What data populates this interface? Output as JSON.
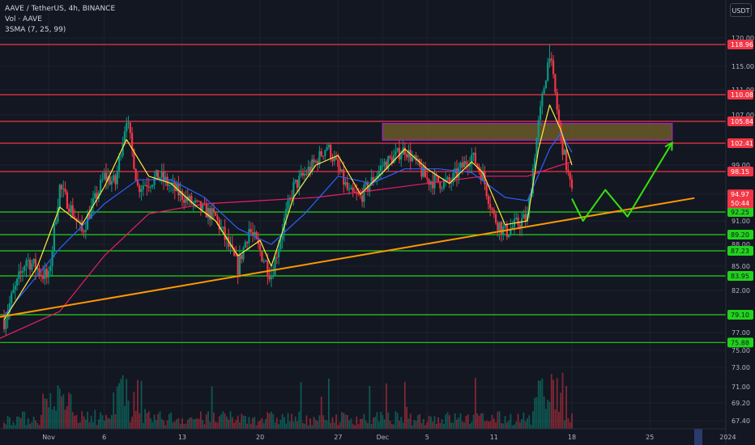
{
  "header": {
    "symbol_line": "AAVE / TetherUS, 4h, BINANCE",
    "volume_line": "Vol · AAVE",
    "sma_line": "3SMA (7, 25, 99)",
    "currency": "USDT"
  },
  "colors": {
    "background": "#131722",
    "resistance": "#f23645",
    "support": "#22d31c",
    "trendline": "#ff9800",
    "projection": "#35e10f",
    "zone_fill": "#6b5b27",
    "zone_border": "#9c27b0",
    "sma7": "#ffeb3b",
    "sma25": "#2962ff",
    "sma99": "#e91e63",
    "candle_up": "#089981",
    "candle_down": "#f23645"
  },
  "chart_data": {
    "type": "candlestick",
    "y_ticks": [
      "120.00",
      "115.00",
      "111.00",
      "107.00",
      "99.00",
      "95.00",
      "91.00",
      "88.00",
      "85.00",
      "82.00",
      "77.00",
      "75.00",
      "73.00",
      "71.00",
      "69.20",
      "67.40"
    ],
    "x_ticks": [
      "Nov",
      "6",
      "13",
      "20",
      "27",
      "Dec",
      "5",
      "11",
      "18",
      "25",
      "2024"
    ],
    "ylim": [
      67.4,
      120.0
    ],
    "horizontal_levels": [
      {
        "label": "118.96",
        "value": 118.96,
        "kind": "resistance"
      },
      {
        "label": "110.08",
        "value": 110.08,
        "kind": "resistance"
      },
      {
        "label": "105.84",
        "value": 105.84,
        "kind": "resistance"
      },
      {
        "label": "102.41",
        "value": 102.41,
        "kind": "resistance"
      },
      {
        "label": "98.15",
        "value": 98.15,
        "kind": "resistance"
      },
      {
        "label": "92.25",
        "value": 92.25,
        "kind": "support"
      },
      {
        "label": "89.20",
        "value": 89.2,
        "kind": "support"
      },
      {
        "label": "87.23",
        "value": 87.23,
        "kind": "support"
      },
      {
        "label": "83.95",
        "value": 83.95,
        "kind": "support"
      },
      {
        "label": "79.10",
        "value": 79.1,
        "kind": "support"
      },
      {
        "label": "75.88",
        "value": 75.88,
        "kind": "support"
      }
    ],
    "price_labels": [
      {
        "label": "94.97",
        "value": 94.97,
        "kind": "last-price"
      },
      {
        "label": "50:44",
        "value": 93.6,
        "kind": "countdown"
      }
    ],
    "price_path": [
      [
        "Oct 28",
        78.5
      ],
      [
        "Oct 30",
        86.0
      ],
      [
        "Nov 1",
        83.5
      ],
      [
        "Nov 2",
        96.0
      ],
      [
        "Nov 4",
        89.5
      ],
      [
        "Nov 6",
        97.5
      ],
      [
        "Nov 7",
        96.5
      ],
      [
        "Nov 8",
        106.5
      ],
      [
        "Nov 9",
        96.0
      ],
      [
        "Nov 11",
        97.5
      ],
      [
        "Nov 12",
        96.0
      ],
      [
        "Nov 14",
        93.5
      ],
      [
        "Nov 16",
        91.5
      ],
      [
        "Nov 18",
        85.0
      ],
      [
        "Nov 19",
        90.0
      ],
      [
        "Nov 21",
        84.0
      ],
      [
        "Nov 23",
        96.0
      ],
      [
        "Nov 25",
        99.5
      ],
      [
        "Nov 26",
        102.0
      ],
      [
        "Nov 28",
        95.0
      ],
      [
        "Nov 29",
        94.5
      ],
      [
        "Dec 1",
        99.0
      ],
      [
        "Dec 3",
        101.5
      ],
      [
        "Dec 5",
        97.0
      ],
      [
        "Dec 7",
        96.5
      ],
      [
        "Dec 9",
        100.5
      ],
      [
        "Dec 10",
        97.5
      ],
      [
        "Dec 11",
        91.5
      ],
      [
        "Dec 12",
        89.5
      ],
      [
        "Dec 14",
        91.5
      ],
      [
        "Dec 15",
        105.5
      ],
      [
        "Dec 16",
        117.5
      ],
      [
        "Dec 17",
        103.0
      ],
      [
        "Dec 18",
        94.97
      ]
    ],
    "sma7": [
      [
        "Oct 28",
        78.5
      ],
      [
        "Oct 31",
        85.0
      ],
      [
        "Nov 2",
        93.0
      ],
      [
        "Nov 4",
        90.5
      ],
      [
        "Nov 6",
        96.0
      ],
      [
        "Nov 8",
        103.0
      ],
      [
        "Nov 10",
        97.5
      ],
      [
        "Nov 12",
        96.5
      ],
      [
        "Nov 14",
        93.5
      ],
      [
        "Nov 16",
        91.0
      ],
      [
        "Nov 18",
        86.5
      ],
      [
        "Nov 20",
        88.5
      ],
      [
        "Nov 21",
        85.0
      ],
      [
        "Nov 23",
        94.5
      ],
      [
        "Nov 25",
        99.0
      ],
      [
        "Nov 27",
        100.5
      ],
      [
        "Nov 29",
        95.0
      ],
      [
        "Dec 1",
        98.0
      ],
      [
        "Dec 3",
        101.5
      ],
      [
        "Dec 5",
        98.5
      ],
      [
        "Dec 7",
        96.5
      ],
      [
        "Dec 9",
        99.5
      ],
      [
        "Dec 10",
        98.0
      ],
      [
        "Dec 12",
        90.5
      ],
      [
        "Dec 14",
        91.0
      ],
      [
        "Dec 15",
        101.5
      ],
      [
        "Dec 16",
        108.5
      ],
      [
        "Dec 17",
        104.5
      ],
      [
        "Dec 18",
        99.0
      ]
    ],
    "sma25": [
      [
        "Oct 28",
        79.0
      ],
      [
        "Nov 2",
        87.5
      ],
      [
        "Nov 6",
        93.5
      ],
      [
        "Nov 9",
        97.0
      ],
      [
        "Nov 12",
        97.0
      ],
      [
        "Nov 15",
        94.5
      ],
      [
        "Nov 18",
        90.0
      ],
      [
        "Nov 21",
        88.0
      ],
      [
        "Nov 24",
        92.0
      ],
      [
        "Nov 27",
        97.5
      ],
      [
        "Nov 30",
        96.5
      ],
      [
        "Dec 3",
        98.5
      ],
      [
        "Dec 6",
        98.5
      ],
      [
        "Dec 9",
        98.0
      ],
      [
        "Dec 12",
        94.5
      ],
      [
        "Dec 14",
        94.0
      ],
      [
        "Dec 16",
        101.5
      ],
      [
        "Dec 17",
        104.0
      ],
      [
        "Dec 18",
        101.0
      ]
    ],
    "sma99": [
      [
        "Oct 27",
        76.0
      ],
      [
        "Nov 2",
        79.5
      ],
      [
        "Nov 6",
        86.5
      ],
      [
        "Nov 10",
        92.0
      ],
      [
        "Nov 15",
        93.5
      ],
      [
        "Nov 20",
        94.0
      ],
      [
        "Nov 25",
        94.5
      ],
      [
        "Nov 30",
        95.5
      ],
      [
        "Dec 5",
        96.5
      ],
      [
        "Dec 10",
        97.5
      ],
      [
        "Dec 14",
        97.5
      ],
      [
        "Dec 17",
        99.0
      ],
      [
        "Dec 18",
        99.5
      ]
    ],
    "trendline": [
      [
        "Oct 27",
        78.7
      ],
      [
        "Dec 29",
        94.4
      ]
    ],
    "projection_path": [
      [
        "Dec 18",
        94.3
      ],
      [
        "Dec 19",
        91.0
      ],
      [
        "Dec 21",
        95.6
      ],
      [
        "Dec 23",
        91.6
      ],
      [
        "Dec 27",
        102.5
      ]
    ],
    "resistance_zone": {
      "x_start": "Dec 1",
      "x_end": "Dec 27",
      "low": 102.9,
      "high": 105.5
    }
  }
}
